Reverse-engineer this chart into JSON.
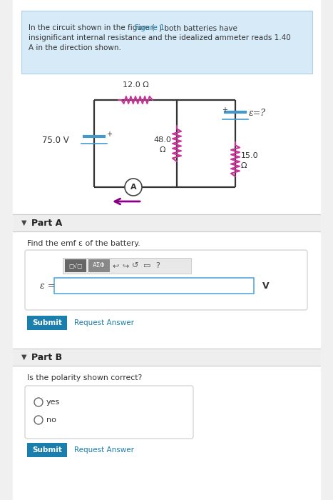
{
  "bg_color": "#f0f0f0",
  "panel_bg": "#ffffff",
  "header_bg": "#d6eaf8",
  "header_border": "#b0cfe8",
  "resistor_color": "#cc3399",
  "wire_color": "#333333",
  "battery_color": "#4499cc",
  "arrow_color": "#880088",
  "emf_color": "#cc3399",
  "submit_color": "#1a7fad",
  "link_color": "#1a7fad",
  "text_color": "#333333",
  "resistor_12": "12.0 Ω",
  "resistor_48_line1": "48.0",
  "resistor_48_line2": "Ω",
  "resistor_15_line1": "15.0",
  "resistor_15_line2": "Ω",
  "battery_75": "75.0 V",
  "emf_label": "ε=?",
  "part_a_label": "Part A",
  "part_a_question": "Find the emf ε of the battery.",
  "emf_eq": "ε =",
  "unit_v": "V",
  "submit_text": "Submit",
  "request_answer": "Request Answer",
  "part_b_label": "Part B",
  "part_b_question": "Is the polarity shown correct?",
  "yes_label": "yes",
  "no_label": "no",
  "header_line1_pre": "In the circuit shown in the figure (",
  "header_link": "Figure 1",
  "header_line1_post": ") both batteries have",
  "header_line2": "insignificant internal resistance and the idealized ammeter reads 1.40",
  "header_line3": "A in the direction shown."
}
